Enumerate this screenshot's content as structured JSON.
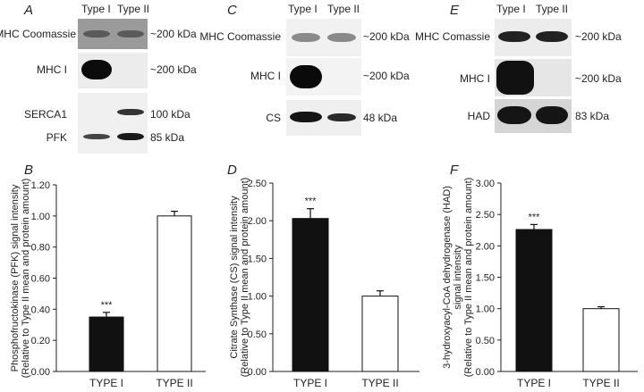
{
  "panels": {
    "A": {
      "letter": "A",
      "lanes": [
        "Type I",
        "Type II"
      ],
      "rows": [
        {
          "label": "MHC Coomassie",
          "kda": "~200 kDa"
        },
        {
          "label": "MHC I",
          "kda": "~200 kDa"
        },
        {
          "label": "SERCA1",
          "kda": "100 kDa"
        },
        {
          "label": "PFK",
          "kda": "85 kDa"
        }
      ]
    },
    "C": {
      "letter": "C",
      "lanes": [
        "Type I",
        "Type II"
      ],
      "rows": [
        {
          "label": "MHC Coomassie",
          "kda": "~200 kDa"
        },
        {
          "label": "MHC I",
          "kda": "~200 kDa"
        },
        {
          "label": "CS",
          "kda": "48 kDa"
        }
      ]
    },
    "E": {
      "letter": "E",
      "lanes": [
        "Type I",
        "Type II"
      ],
      "rows": [
        {
          "label": "MHC Comassie",
          "kda": "~200 kDa"
        },
        {
          "label": "MHC I",
          "kda": "~200 kDa"
        },
        {
          "label": "HAD",
          "kda": "83 kDa"
        }
      ]
    }
  },
  "colors": {
    "type1_bar": "#111111",
    "type2_bar": "#ffffff",
    "axis": "#222222"
  },
  "chart_data": [
    {
      "letter": "B",
      "type": "bar",
      "categories": [
        "TYPE I",
        "TYPE II"
      ],
      "values": [
        0.35,
        1.0
      ],
      "errors": [
        0.03,
        0.03
      ],
      "annotations": [
        "***",
        ""
      ],
      "ylabel": [
        "Phosphofructokinase (PFK) signal intensity",
        "(Relative to Type II mean and protein amount)"
      ],
      "ylim": [
        0,
        1.2
      ],
      "yticks": [
        "0.00",
        "0.20",
        "0.40",
        "0.60",
        "0.80",
        "1.00",
        "1.20"
      ]
    },
    {
      "letter": "D",
      "type": "bar",
      "categories": [
        "TYPE I",
        "TYPE II"
      ],
      "values": [
        2.03,
        1.0
      ],
      "errors": [
        0.13,
        0.07
      ],
      "annotations": [
        "***",
        ""
      ],
      "ylabel": [
        "Citrate Synthase (CS) signal intensity",
        "(Relative to Type II mean and protein amount)"
      ],
      "ylim": [
        0,
        2.5
      ],
      "yticks": [
        "0.00",
        "0.50",
        "1.00",
        "1.50",
        "2.00",
        "2.50"
      ]
    },
    {
      "letter": "F",
      "type": "bar",
      "categories": [
        "TYPE I",
        "TYPE II"
      ],
      "values": [
        2.26,
        1.0
      ],
      "errors": [
        0.08,
        0.03
      ],
      "annotations": [
        "***",
        ""
      ],
      "ylabel": [
        "3-hydroxyacyl-CoA dehydrogenase (HAD)",
        "signal intensity",
        "(Relative to Type II mean and protein amount)"
      ],
      "ylim": [
        0,
        3.0
      ],
      "yticks": [
        "0.00",
        "0.50",
        "1.00",
        "1.50",
        "2.00",
        "2.50",
        "3.00"
      ]
    }
  ]
}
